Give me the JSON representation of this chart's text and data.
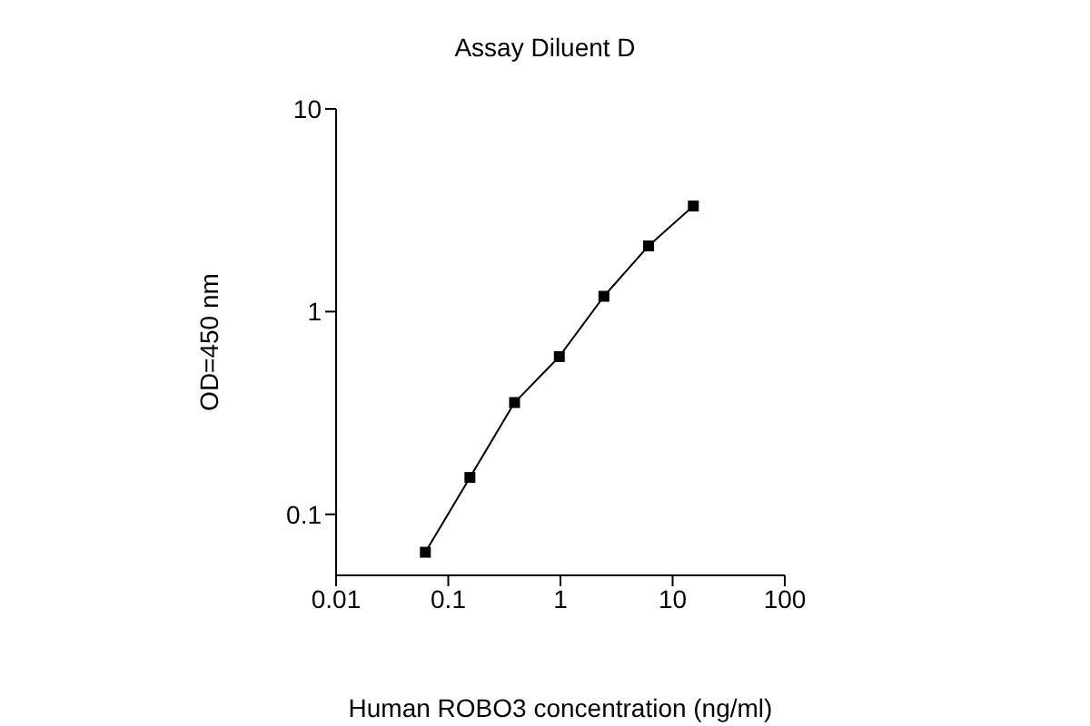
{
  "chart_data": {
    "type": "line",
    "title": "Assay Diluent D",
    "xlabel": "Human ROBO3 concentration (ng/ml)",
    "ylabel": "OD=450 nm",
    "log": "xy",
    "x": [
      0.0625,
      0.156,
      0.39,
      0.977,
      2.44,
      6.1,
      15.3
    ],
    "series": [
      {
        "color": "#000000",
        "values": [
          0.065,
          0.152,
          0.356,
          0.6,
          1.19,
          2.11,
          3.32
        ]
      }
    ],
    "xlim": [
      0.01,
      100
    ],
    "xticks": [
      0.01,
      0.1,
      1,
      10,
      100
    ],
    "ylim": [
      0.05,
      10
    ],
    "yticks": [
      0.1,
      1,
      10
    ],
    "grid": false,
    "legend": false,
    "marker": "square",
    "line_style": "solid"
  }
}
